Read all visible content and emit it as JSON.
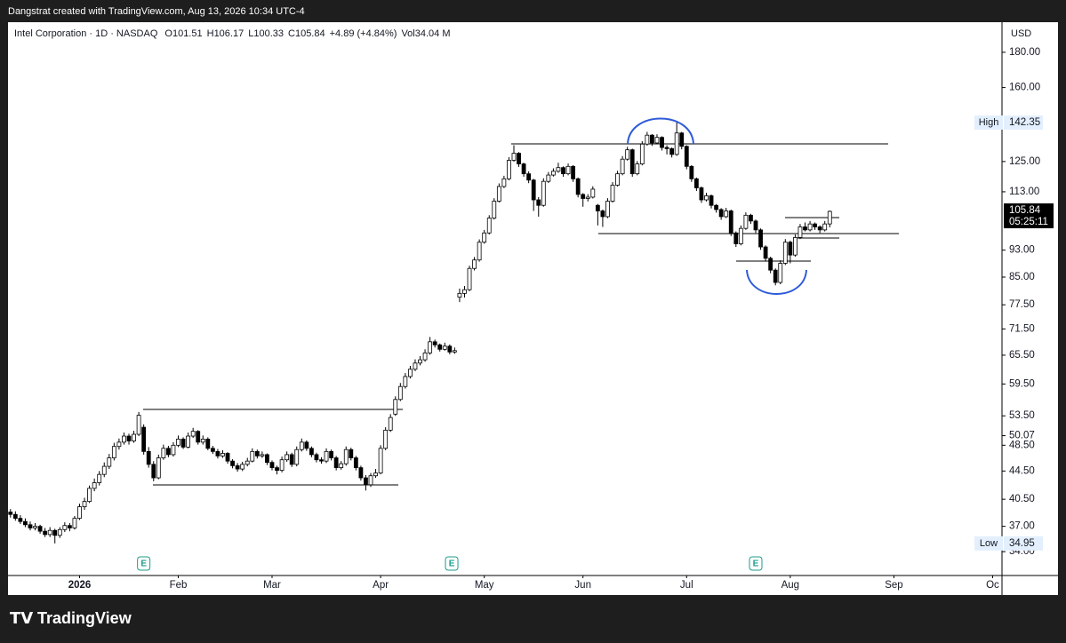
{
  "top_bar": "Dangstrat created with TradingView.com, Aug 13, 2026 10:34 UTC-4",
  "brand": "TradingView",
  "header": {
    "symbol": "Intel Corporation · 1D · NASDAQ",
    "o": "O",
    "h": "H",
    "l": "L",
    "c": "C",
    "change": "+4.89 (+4.84%)",
    "vol": "Vol",
    "vol_value": "34.04 M"
  },
  "chart_data": {
    "type": "candlestick",
    "currency": "USD",
    "log_scale": true,
    "grid": false,
    "up_color": "#ffffff",
    "down_color": "#000000",
    "wick_color": "#000000",
    "high_label": "High",
    "low_label": "Low",
    "countdown": "05:25:11",
    "ylim": [
      31.4,
      199
    ],
    "yticks": [
      {
        "value": 180,
        "label": "180.00"
      },
      {
        "value": 160,
        "label": "160.00"
      },
      {
        "value": 125,
        "label": "125.00"
      },
      {
        "value": 113,
        "label": "113.00"
      },
      {
        "value": 93,
        "label": "93.00"
      },
      {
        "value": 85,
        "label": "85.00"
      },
      {
        "value": 77.5,
        "label": "77.50"
      },
      {
        "value": 71.5,
        "label": "71.50"
      },
      {
        "value": 65.5,
        "label": "65.50"
      },
      {
        "value": 59.5,
        "label": "59.50"
      },
      {
        "value": 53.5,
        "label": "53.50"
      },
      {
        "value": 50.07,
        "label": "50.07"
      },
      {
        "value": 48.5,
        "label": "48.50"
      },
      {
        "value": 44.5,
        "label": "44.50"
      },
      {
        "value": 40.5,
        "label": "40.50"
      },
      {
        "value": 37,
        "label": "37.00"
      },
      {
        "value": 34,
        "label": "34.00"
      }
    ],
    "xlim": [
      -0.5,
      200.9
    ],
    "xticks": [
      {
        "value": 14,
        "label": "2026"
      },
      {
        "value": 34,
        "label": "Feb"
      },
      {
        "value": 53,
        "label": "Mar"
      },
      {
        "value": 75,
        "label": "Apr"
      },
      {
        "value": 96,
        "label": "May"
      },
      {
        "value": 116,
        "label": "Jun"
      },
      {
        "value": 137,
        "label": "Jul"
      },
      {
        "value": 158,
        "label": "Aug"
      },
      {
        "value": 179,
        "label": "Sep"
      },
      {
        "value": 199,
        "label": "Oc"
      }
    ],
    "events": [
      {
        "x": 27,
        "label": "E"
      },
      {
        "x": 89.4,
        "label": "E"
      },
      {
        "x": 151,
        "label": "E"
      }
    ],
    "ohlc": [
      [
        38.8,
        39.2,
        38.1,
        38.5
      ],
      [
        38.5,
        38.9,
        37.7,
        38.0
      ],
      [
        38.0,
        38.4,
        37.3,
        37.6
      ],
      [
        37.6,
        38.0,
        36.9,
        37.2
      ],
      [
        37.2,
        37.6,
        36.5,
        36.8
      ],
      [
        36.8,
        37.4,
        36.5,
        37.0
      ],
      [
        37.0,
        37.2,
        36.1,
        36.4
      ],
      [
        36.4,
        36.8,
        35.7,
        36.0
      ],
      [
        36.0,
        36.9,
        35.7,
        36.5
      ],
      [
        36.5,
        36.7,
        34.95,
        35.9
      ],
      [
        35.9,
        36.9,
        35.6,
        36.6
      ],
      [
        36.6,
        37.5,
        36.3,
        37.1
      ],
      [
        37.1,
        37.4,
        36.4,
        36.8
      ],
      [
        36.8,
        38.3,
        36.6,
        38.0
      ],
      [
        38.0,
        39.9,
        37.8,
        39.5
      ],
      [
        39.5,
        40.7,
        39.1,
        40.2
      ],
      [
        40.2,
        42.4,
        40.0,
        42.0
      ],
      [
        42.0,
        43.4,
        41.6,
        42.8
      ],
      [
        42.8,
        44.5,
        42.4,
        44.0
      ],
      [
        44.0,
        45.8,
        43.6,
        45.2
      ],
      [
        45.2,
        47.1,
        44.8,
        46.5
      ],
      [
        46.5,
        48.9,
        46.1,
        48.3
      ],
      [
        48.3,
        49.6,
        47.8,
        49.0
      ],
      [
        49.0,
        50.6,
        48.6,
        50.0
      ],
      [
        50.0,
        50.4,
        48.6,
        49.2
      ],
      [
        49.2,
        50.9,
        48.9,
        50.3
      ],
      [
        50.3,
        54.2,
        50.0,
        53.6
      ],
      [
        51.5,
        52.0,
        47.0,
        47.5
      ],
      [
        47.5,
        48.2,
        45.0,
        45.5
      ],
      [
        45.5,
        46.0,
        43.0,
        43.5
      ],
      [
        43.5,
        47.0,
        43.3,
        46.5
      ],
      [
        46.5,
        48.6,
        46.2,
        48.0
      ],
      [
        48.0,
        48.4,
        46.6,
        47.0
      ],
      [
        47.0,
        49.0,
        46.7,
        48.5
      ],
      [
        48.5,
        50.1,
        48.2,
        49.5
      ],
      [
        49.5,
        49.8,
        47.9,
        48.2
      ],
      [
        48.2,
        50.6,
        48.0,
        50.0
      ],
      [
        50.0,
        51.4,
        49.7,
        50.8
      ],
      [
        50.8,
        51.0,
        48.6,
        49.0
      ],
      [
        49.0,
        50.1,
        48.6,
        49.5
      ],
      [
        49.5,
        49.8,
        47.7,
        48.0
      ],
      [
        48.0,
        48.4,
        47.1,
        47.5
      ],
      [
        47.5,
        47.9,
        46.4,
        46.8
      ],
      [
        46.8,
        47.7,
        46.5,
        47.2
      ],
      [
        47.2,
        47.4,
        45.6,
        46.0
      ],
      [
        46.0,
        46.3,
        44.9,
        45.3
      ],
      [
        45.3,
        45.7,
        44.4,
        44.8
      ],
      [
        44.8,
        45.9,
        44.5,
        45.5
      ],
      [
        45.5,
        46.5,
        45.2,
        46.0
      ],
      [
        46.0,
        48.0,
        45.8,
        47.5
      ],
      [
        47.5,
        47.8,
        46.4,
        46.8
      ],
      [
        46.8,
        47.5,
        46.5,
        47.0
      ],
      [
        47.0,
        47.2,
        45.4,
        45.8
      ],
      [
        45.8,
        46.1,
        44.6,
        45.0
      ],
      [
        45.0,
        45.3,
        44.0,
        44.6
      ],
      [
        44.6,
        46.7,
        44.3,
        46.2
      ],
      [
        46.2,
        47.5,
        45.9,
        47.0
      ],
      [
        47.0,
        47.3,
        45.1,
        45.5
      ],
      [
        45.5,
        48.3,
        45.2,
        47.8
      ],
      [
        47.8,
        49.6,
        47.5,
        49.0
      ],
      [
        49.0,
        49.3,
        47.6,
        48.0
      ],
      [
        48.0,
        48.3,
        46.6,
        47.0
      ],
      [
        47.0,
        47.3,
        45.8,
        46.2
      ],
      [
        46.2,
        46.6,
        45.6,
        46.0
      ],
      [
        46.0,
        48.0,
        45.7,
        47.5
      ],
      [
        47.5,
        47.8,
        46.1,
        46.5
      ],
      [
        46.5,
        46.8,
        44.6,
        45.0
      ],
      [
        45.0,
        46.0,
        44.7,
        45.6
      ],
      [
        45.6,
        48.3,
        45.3,
        47.8
      ],
      [
        47.8,
        48.1,
        46.1,
        46.5
      ],
      [
        46.5,
        46.8,
        44.6,
        45.0
      ],
      [
        45.0,
        45.3,
        43.1,
        43.5
      ],
      [
        43.5,
        43.9,
        41.7,
        42.5
      ],
      [
        42.5,
        44.2,
        42.2,
        43.8
      ],
      [
        43.8,
        44.8,
        43.5,
        44.2
      ],
      [
        44.2,
        48.5,
        44.0,
        48.0
      ],
      [
        48.0,
        51.5,
        47.7,
        51.0
      ],
      [
        51.0,
        53.8,
        50.7,
        53.2
      ],
      [
        53.8,
        57.1,
        53.5,
        56.5
      ],
      [
        56.5,
        59.7,
        56.2,
        59.0
      ],
      [
        59.0,
        61.7,
        58.6,
        61.0
      ],
      [
        61.0,
        63.2,
        60.6,
        62.5
      ],
      [
        62.5,
        64.6,
        62.1,
        63.8
      ],
      [
        63.8,
        65.3,
        63.3,
        64.5
      ],
      [
        64.5,
        66.8,
        64.1,
        66.0
      ],
      [
        66.0,
        69.6,
        65.6,
        68.5
      ],
      [
        68.5,
        69.0,
        67.2,
        67.8
      ],
      [
        67.8,
        68.1,
        66.3,
        66.8
      ],
      [
        66.8,
        68.3,
        66.5,
        67.5
      ],
      [
        67.5,
        67.9,
        65.7,
        66.2
      ],
      [
        66.2,
        67.2,
        65.8,
        66.5
      ],
      [
        79.5,
        81.8,
        78.2,
        80.5
      ],
      [
        80.5,
        82.5,
        79.4,
        81.5
      ],
      [
        81.5,
        88.3,
        81.1,
        87.5
      ],
      [
        87.5,
        90.9,
        86.9,
        90.0
      ],
      [
        90.0,
        96.4,
        89.5,
        95.5
      ],
      [
        95.5,
        99.5,
        95.0,
        98.5
      ],
      [
        98.5,
        104.5,
        98.0,
        103.5
      ],
      [
        103.5,
        110.6,
        103.0,
        109.5
      ],
      [
        109.5,
        116.2,
        109.0,
        115.0
      ],
      [
        115.0,
        119.2,
        114.4,
        118.0
      ],
      [
        118.0,
        126.8,
        117.4,
        125.5
      ],
      [
        125.5,
        132.0,
        124.9,
        128.5
      ],
      [
        128.5,
        129.0,
        122.8,
        124.0
      ],
      [
        124.0,
        124.5,
        118.8,
        120.0
      ],
      [
        120.0,
        121.0,
        116.3,
        117.5
      ],
      [
        117.5,
        118.0,
        106.0,
        110.0
      ],
      [
        110.0,
        111.0,
        104.0,
        108.0
      ],
      [
        108.0,
        118.2,
        107.5,
        117.0
      ],
      [
        117.0,
        120.7,
        116.4,
        119.5
      ],
      [
        119.5,
        122.2,
        118.9,
        121.0
      ],
      [
        121.0,
        124.5,
        120.4,
        122.5
      ],
      [
        122.5,
        123.0,
        118.8,
        120.0
      ],
      [
        120.0,
        124.2,
        119.4,
        123.0
      ],
      [
        123.0,
        123.5,
        116.8,
        118.0
      ],
      [
        118.0,
        118.5,
        110.9,
        112.0
      ],
      [
        112.0,
        112.5,
        107.5,
        110.5
      ],
      [
        110.5,
        112.1,
        109.4,
        111.0
      ],
      [
        111.0,
        115.1,
        110.5,
        114.0
      ],
      [
        108.0,
        108.5,
        101.0,
        106.0
      ],
      [
        106.0,
        106.5,
        100.5,
        104.0
      ],
      [
        104.0,
        110.6,
        103.5,
        109.5
      ],
      [
        109.5,
        116.7,
        109.0,
        115.5
      ],
      [
        115.5,
        121.2,
        115.0,
        120.0
      ],
      [
        120.0,
        127.3,
        119.4,
        126.0
      ],
      [
        126.0,
        131.3,
        125.4,
        130.0
      ],
      [
        130.0,
        130.5,
        118.8,
        120.0
      ],
      [
        120.0,
        125.2,
        119.4,
        124.0
      ],
      [
        124.0,
        133.8,
        123.4,
        132.5
      ],
      [
        132.5,
        138.0,
        131.8,
        136.5
      ],
      [
        136.5,
        137.0,
        131.7,
        133.0
      ],
      [
        133.0,
        136.9,
        132.4,
        135.5
      ],
      [
        135.5,
        136.0,
        129.7,
        131.0
      ],
      [
        131.0,
        132.0,
        128.0,
        130.5
      ],
      [
        130.5,
        131.0,
        126.7,
        128.0
      ],
      [
        128.0,
        142.35,
        127.4,
        137.5
      ],
      [
        137.5,
        138.0,
        130.2,
        131.5
      ],
      [
        131.5,
        132.0,
        121.8,
        123.0
      ],
      [
        123.0,
        123.5,
        116.8,
        118.0
      ],
      [
        118.0,
        118.5,
        113.3,
        114.5
      ],
      [
        114.5,
        115.0,
        108.9,
        110.0
      ],
      [
        110.0,
        112.6,
        109.4,
        111.5
      ],
      [
        111.5,
        112.0,
        106.9,
        108.0
      ],
      [
        108.0,
        108.5,
        105.4,
        106.5
      ],
      [
        106.5,
        107.0,
        102.9,
        104.0
      ],
      [
        104.0,
        107.1,
        103.5,
        106.0
      ],
      [
        106.0,
        106.5,
        97.5,
        98.5
      ],
      [
        98.5,
        99.0,
        94.0,
        95.0
      ],
      [
        95.0,
        101.0,
        94.5,
        100.0
      ],
      [
        100.0,
        105.5,
        99.5,
        104.5
      ],
      [
        104.5,
        105.0,
        101.5,
        102.5
      ],
      [
        102.5,
        103.0,
        98.5,
        99.5
      ],
      [
        99.5,
        100.0,
        93.1,
        94.0
      ],
      [
        94.0,
        94.5,
        89.6,
        90.5
      ],
      [
        90.5,
        91.0,
        86.1,
        87.0
      ],
      [
        87.0,
        87.5,
        82.7,
        83.5
      ],
      [
        83.5,
        89.9,
        83.0,
        89.0
      ],
      [
        89.0,
        96.5,
        88.5,
        95.5
      ],
      [
        95.5,
        96.0,
        89.0,
        91.5
      ],
      [
        91.5,
        98.0,
        91.0,
        97.0
      ],
      [
        97.0,
        101.5,
        96.5,
        100.5
      ],
      [
        100.5,
        102.0,
        99.0,
        99.5
      ],
      [
        99.5,
        102.5,
        99.0,
        101.5
      ],
      [
        101.5,
        102.0,
        99.5,
        100.5
      ],
      [
        100.5,
        101.0,
        98.5,
        99.5
      ],
      [
        99.5,
        102.5,
        99.0,
        101.5
      ],
      [
        101.51,
        106.17,
        100.33,
        105.84
      ]
    ]
  }
}
